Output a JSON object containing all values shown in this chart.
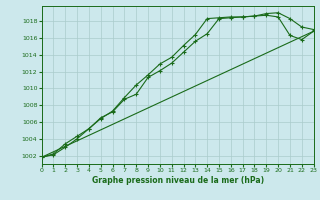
{
  "title": "Graphe pression niveau de la mer (hPa)",
  "background_color": "#cce8ec",
  "grid_color": "#aacccc",
  "line_color": "#1a6b1a",
  "x_min": 0,
  "x_max": 23,
  "y_min": 1001.0,
  "y_max": 1019.8,
  "yticks": [
    1002,
    1004,
    1006,
    1008,
    1010,
    1012,
    1014,
    1016,
    1018
  ],
  "xticks": [
    0,
    1,
    2,
    3,
    4,
    5,
    6,
    7,
    8,
    9,
    10,
    11,
    12,
    13,
    14,
    15,
    16,
    17,
    18,
    19,
    20,
    21,
    22,
    23
  ],
  "series1_x": [
    0,
    1,
    2,
    3,
    4,
    5,
    6,
    7,
    8,
    9,
    10,
    11,
    12,
    13,
    14,
    15,
    16,
    17,
    18,
    19,
    20,
    21,
    22,
    23
  ],
  "series1_y": [
    1001.8,
    1002.1,
    1003.0,
    1004.0,
    1005.2,
    1006.5,
    1007.2,
    1008.7,
    1009.3,
    1011.3,
    1012.1,
    1013.0,
    1014.3,
    1015.6,
    1016.5,
    1018.3,
    1018.4,
    1018.5,
    1018.6,
    1018.9,
    1019.0,
    1018.3,
    1017.3,
    1017.0
  ],
  "series2_x": [
    0,
    1,
    2,
    3,
    4,
    5,
    6,
    7,
    8,
    9,
    10,
    11,
    12,
    13,
    14,
    15,
    16,
    17,
    18,
    19,
    20,
    21,
    22,
    23
  ],
  "series2_y": [
    1001.8,
    1002.2,
    1003.4,
    1004.3,
    1005.2,
    1006.4,
    1007.3,
    1008.9,
    1010.4,
    1011.6,
    1012.9,
    1013.7,
    1015.1,
    1016.4,
    1018.3,
    1018.4,
    1018.5,
    1018.5,
    1018.6,
    1018.7,
    1018.5,
    1016.3,
    1015.8,
    1016.8
  ],
  "series3_x": [
    0,
    23
  ],
  "series3_y": [
    1001.8,
    1016.8
  ]
}
